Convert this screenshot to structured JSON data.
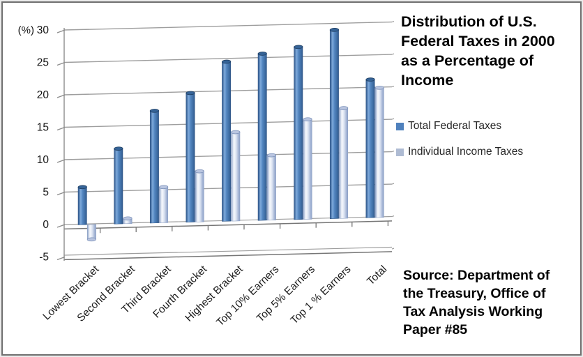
{
  "frame": {
    "border_color": "#6f6f6f",
    "background": "#ffffff"
  },
  "chart_data": {
    "type": "bar",
    "style": "3d-cylinder",
    "title": "Distribution of U.S. Federal Taxes in 2000 as a Percentage of Income",
    "ylabel": "(%)",
    "ylim": [
      -5,
      30
    ],
    "yticks": [
      30,
      25,
      20,
      15,
      10,
      5,
      0,
      -5
    ],
    "grid": true,
    "legend_position": "right",
    "categories": [
      "Lowest Bracket",
      "Second Bracket",
      "Third Bracket",
      "Fourth Bracket",
      "Highest Bracket",
      "Top 10% Earners",
      "Top 5% Earners",
      "Top 1 % Earners",
      "Total"
    ],
    "series": [
      {
        "name": "Total Federal Taxes",
        "color": "#4f81bd",
        "values": [
          5.7,
          11.5,
          17.2,
          19.8,
          24.5,
          25.6,
          26.5,
          29.0,
          21.2
        ]
      },
      {
        "name": "Individual Income Taxes",
        "color": "#aebbd3",
        "values": [
          -2.4,
          0.7,
          5.4,
          7.7,
          13.6,
          9.9,
          15.3,
          16.9,
          19.9
        ]
      }
    ]
  },
  "title_panel": {
    "lines": [
      "Distribution of U.S.",
      "Federal Taxes in 2000",
      "as a Percentage of",
      "Income"
    ]
  },
  "source_note": {
    "lines": [
      "Source: Department of",
      "the Treasury, Office of",
      "Tax Analysis Working",
      "Paper #85"
    ]
  }
}
